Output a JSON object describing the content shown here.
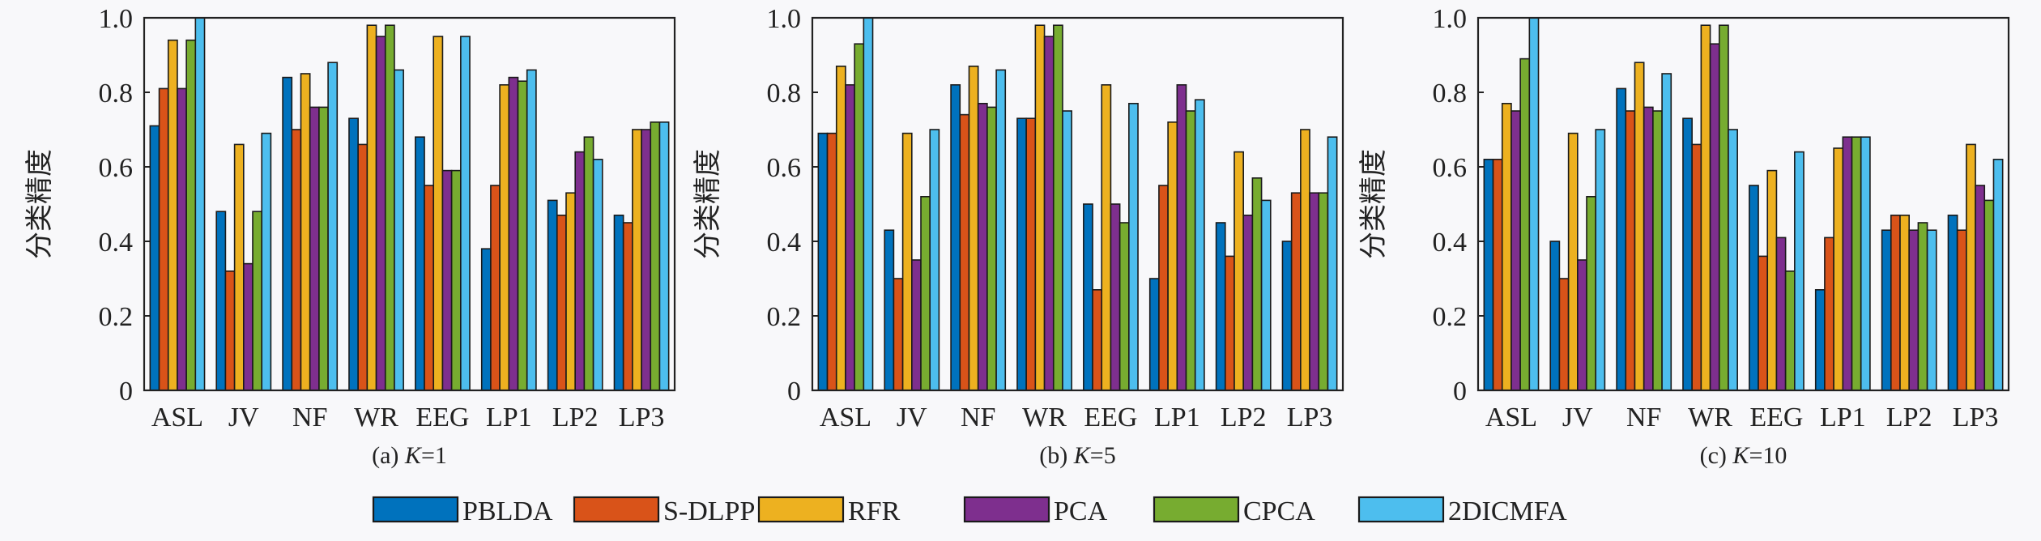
{
  "y_axis_label": "分类精度",
  "legend": {
    "placement": "bottom-center",
    "entries": [
      "PBLDA",
      "S-DLPP",
      "RFR",
      "PCA",
      "CPCA",
      "2DICMFA"
    ]
  },
  "colors": [
    "#0072BD",
    "#D95319",
    "#EDB120",
    "#7E2F8E",
    "#77AC30",
    "#4DBEEE"
  ],
  "chart_data": [
    {
      "type": "bar",
      "title": "(a) K=1",
      "title_prefix": "(a) ",
      "title_var": "K",
      "title_suffix": "=1",
      "categories": [
        "ASL",
        "JV",
        "NF",
        "WR",
        "EEG",
        "LP1",
        "LP2",
        "LP3"
      ],
      "ylim": [
        0,
        1.0
      ],
      "yticks": [
        "0",
        "0.2",
        "0.4",
        "0.6",
        "0.8",
        "1.0"
      ],
      "grid": false,
      "series": [
        {
          "name": "PBLDA",
          "values": [
            0.71,
            0.48,
            0.84,
            0.73,
            0.68,
            0.38,
            0.51,
            0.47
          ]
        },
        {
          "name": "S-DLPP",
          "values": [
            0.81,
            0.32,
            0.7,
            0.66,
            0.55,
            0.55,
            0.47,
            0.45
          ]
        },
        {
          "name": "RFR",
          "values": [
            0.94,
            0.66,
            0.85,
            0.98,
            0.95,
            0.82,
            0.53,
            0.7
          ]
        },
        {
          "name": "PCA",
          "values": [
            0.81,
            0.34,
            0.76,
            0.95,
            0.59,
            0.84,
            0.64,
            0.7
          ]
        },
        {
          "name": "CPCA",
          "values": [
            0.94,
            0.48,
            0.76,
            0.98,
            0.59,
            0.83,
            0.68,
            0.72
          ]
        },
        {
          "name": "2DICMFA",
          "values": [
            1.0,
            0.69,
            0.88,
            0.86,
            0.95,
            0.86,
            0.62,
            0.72
          ]
        }
      ]
    },
    {
      "type": "bar",
      "title": "(b) K=5",
      "title_prefix": "(b) ",
      "title_var": "K",
      "title_suffix": "=5",
      "categories": [
        "ASL",
        "JV",
        "NF",
        "WR",
        "EEG",
        "LP1",
        "LP2",
        "LP3"
      ],
      "ylim": [
        0,
        1.0
      ],
      "yticks": [
        "0",
        "0.2",
        "0.4",
        "0.6",
        "0.8",
        "1.0"
      ],
      "grid": false,
      "series": [
        {
          "name": "PBLDA",
          "values": [
            0.69,
            0.43,
            0.82,
            0.73,
            0.5,
            0.3,
            0.45,
            0.4
          ]
        },
        {
          "name": "S-DLPP",
          "values": [
            0.69,
            0.3,
            0.74,
            0.73,
            0.27,
            0.55,
            0.36,
            0.53
          ]
        },
        {
          "name": "RFR",
          "values": [
            0.87,
            0.69,
            0.87,
            0.98,
            0.82,
            0.72,
            0.64,
            0.7
          ]
        },
        {
          "name": "PCA",
          "values": [
            0.82,
            0.35,
            0.77,
            0.95,
            0.5,
            0.82,
            0.47,
            0.53
          ]
        },
        {
          "name": "CPCA",
          "values": [
            0.93,
            0.52,
            0.76,
            0.98,
            0.45,
            0.75,
            0.57,
            0.53
          ]
        },
        {
          "name": "2DICMFA",
          "values": [
            1.0,
            0.7,
            0.86,
            0.75,
            0.77,
            0.78,
            0.51,
            0.68
          ]
        }
      ]
    },
    {
      "type": "bar",
      "title": "(c) K=10",
      "title_prefix": "(c) ",
      "title_var": "K",
      "title_suffix": "=10",
      "categories": [
        "ASL",
        "JV",
        "NF",
        "WR",
        "EEG",
        "LP1",
        "LP2",
        "LP3"
      ],
      "ylim": [
        0,
        1.0
      ],
      "yticks": [
        "0",
        "0.2",
        "0.4",
        "0.6",
        "0.8",
        "1.0"
      ],
      "grid": false,
      "series": [
        {
          "name": "PBLDA",
          "values": [
            0.62,
            0.4,
            0.81,
            0.73,
            0.55,
            0.27,
            0.43,
            0.47
          ]
        },
        {
          "name": "S-DLPP",
          "values": [
            0.62,
            0.3,
            0.75,
            0.66,
            0.36,
            0.41,
            0.47,
            0.43
          ]
        },
        {
          "name": "RFR",
          "values": [
            0.77,
            0.69,
            0.88,
            0.98,
            0.59,
            0.65,
            0.47,
            0.66
          ]
        },
        {
          "name": "PCA",
          "values": [
            0.75,
            0.35,
            0.76,
            0.93,
            0.41,
            0.68,
            0.43,
            0.55
          ]
        },
        {
          "name": "CPCA",
          "values": [
            0.89,
            0.52,
            0.75,
            0.98,
            0.32,
            0.68,
            0.45,
            0.51
          ]
        },
        {
          "name": "2DICMFA",
          "values": [
            1.0,
            0.7,
            0.85,
            0.7,
            0.64,
            0.68,
            0.43,
            0.62
          ]
        }
      ]
    }
  ]
}
